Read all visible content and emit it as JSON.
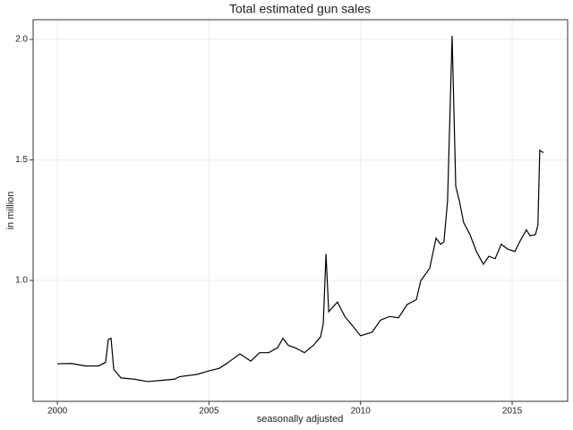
{
  "chart_data": {
    "type": "line",
    "title": "Total estimated gun sales",
    "xlabel": "seasonally adjusted",
    "ylabel": "in million",
    "x": [
      2000.0,
      2000.47,
      2000.92,
      2001.36,
      2001.59,
      2001.68,
      2001.77,
      2001.86,
      2002.1,
      2002.54,
      2002.98,
      2003.42,
      2003.87,
      2004.02,
      2004.61,
      2005.02,
      2005.34,
      2005.64,
      2006.02,
      2006.38,
      2006.67,
      2006.97,
      2007.26,
      2007.44,
      2007.62,
      2007.85,
      2008.15,
      2008.44,
      2008.68,
      2008.77,
      2008.86,
      2008.95,
      2009.09,
      2009.24,
      2009.48,
      2009.68,
      2010.0,
      2010.38,
      2010.66,
      2010.95,
      2011.25,
      2011.54,
      2011.84,
      2011.99,
      2012.28,
      2012.49,
      2012.64,
      2012.75,
      2012.87,
      2013.02,
      2013.14,
      2013.26,
      2013.4,
      2013.61,
      2013.82,
      2014.05,
      2014.23,
      2014.44,
      2014.64,
      2014.85,
      2015.09,
      2015.29,
      2015.47,
      2015.59,
      2015.77,
      2015.85,
      2015.91,
      2016.03
    ],
    "values": [
      0.654,
      0.655,
      0.645,
      0.645,
      0.66,
      0.755,
      0.76,
      0.63,
      0.595,
      0.59,
      0.58,
      0.585,
      0.59,
      0.6,
      0.61,
      0.625,
      0.635,
      0.66,
      0.695,
      0.665,
      0.7,
      0.7,
      0.72,
      0.76,
      0.73,
      0.72,
      0.7,
      0.73,
      0.765,
      0.82,
      1.11,
      0.87,
      0.89,
      0.91,
      0.85,
      0.82,
      0.77,
      0.785,
      0.835,
      0.85,
      0.845,
      0.9,
      0.92,
      1.0,
      1.05,
      1.175,
      1.15,
      1.16,
      1.33,
      2.015,
      1.39,
      1.33,
      1.24,
      1.19,
      1.12,
      1.067,
      1.1,
      1.09,
      1.15,
      1.13,
      1.12,
      1.17,
      1.21,
      1.185,
      1.19,
      1.23,
      1.54,
      1.53
    ],
    "color": "#000000",
    "xlim": [
      1999.2,
      2016.83
    ],
    "xticks": [
      2000,
      2005,
      2010,
      2015
    ],
    "ylim": [
      0.498,
      2.082
    ],
    "yticks": [
      {
        "value": 1,
        "label": "1.0"
      },
      1.5,
      {
        "value": 2,
        "label": "2.0"
      }
    ],
    "grid": true
  }
}
